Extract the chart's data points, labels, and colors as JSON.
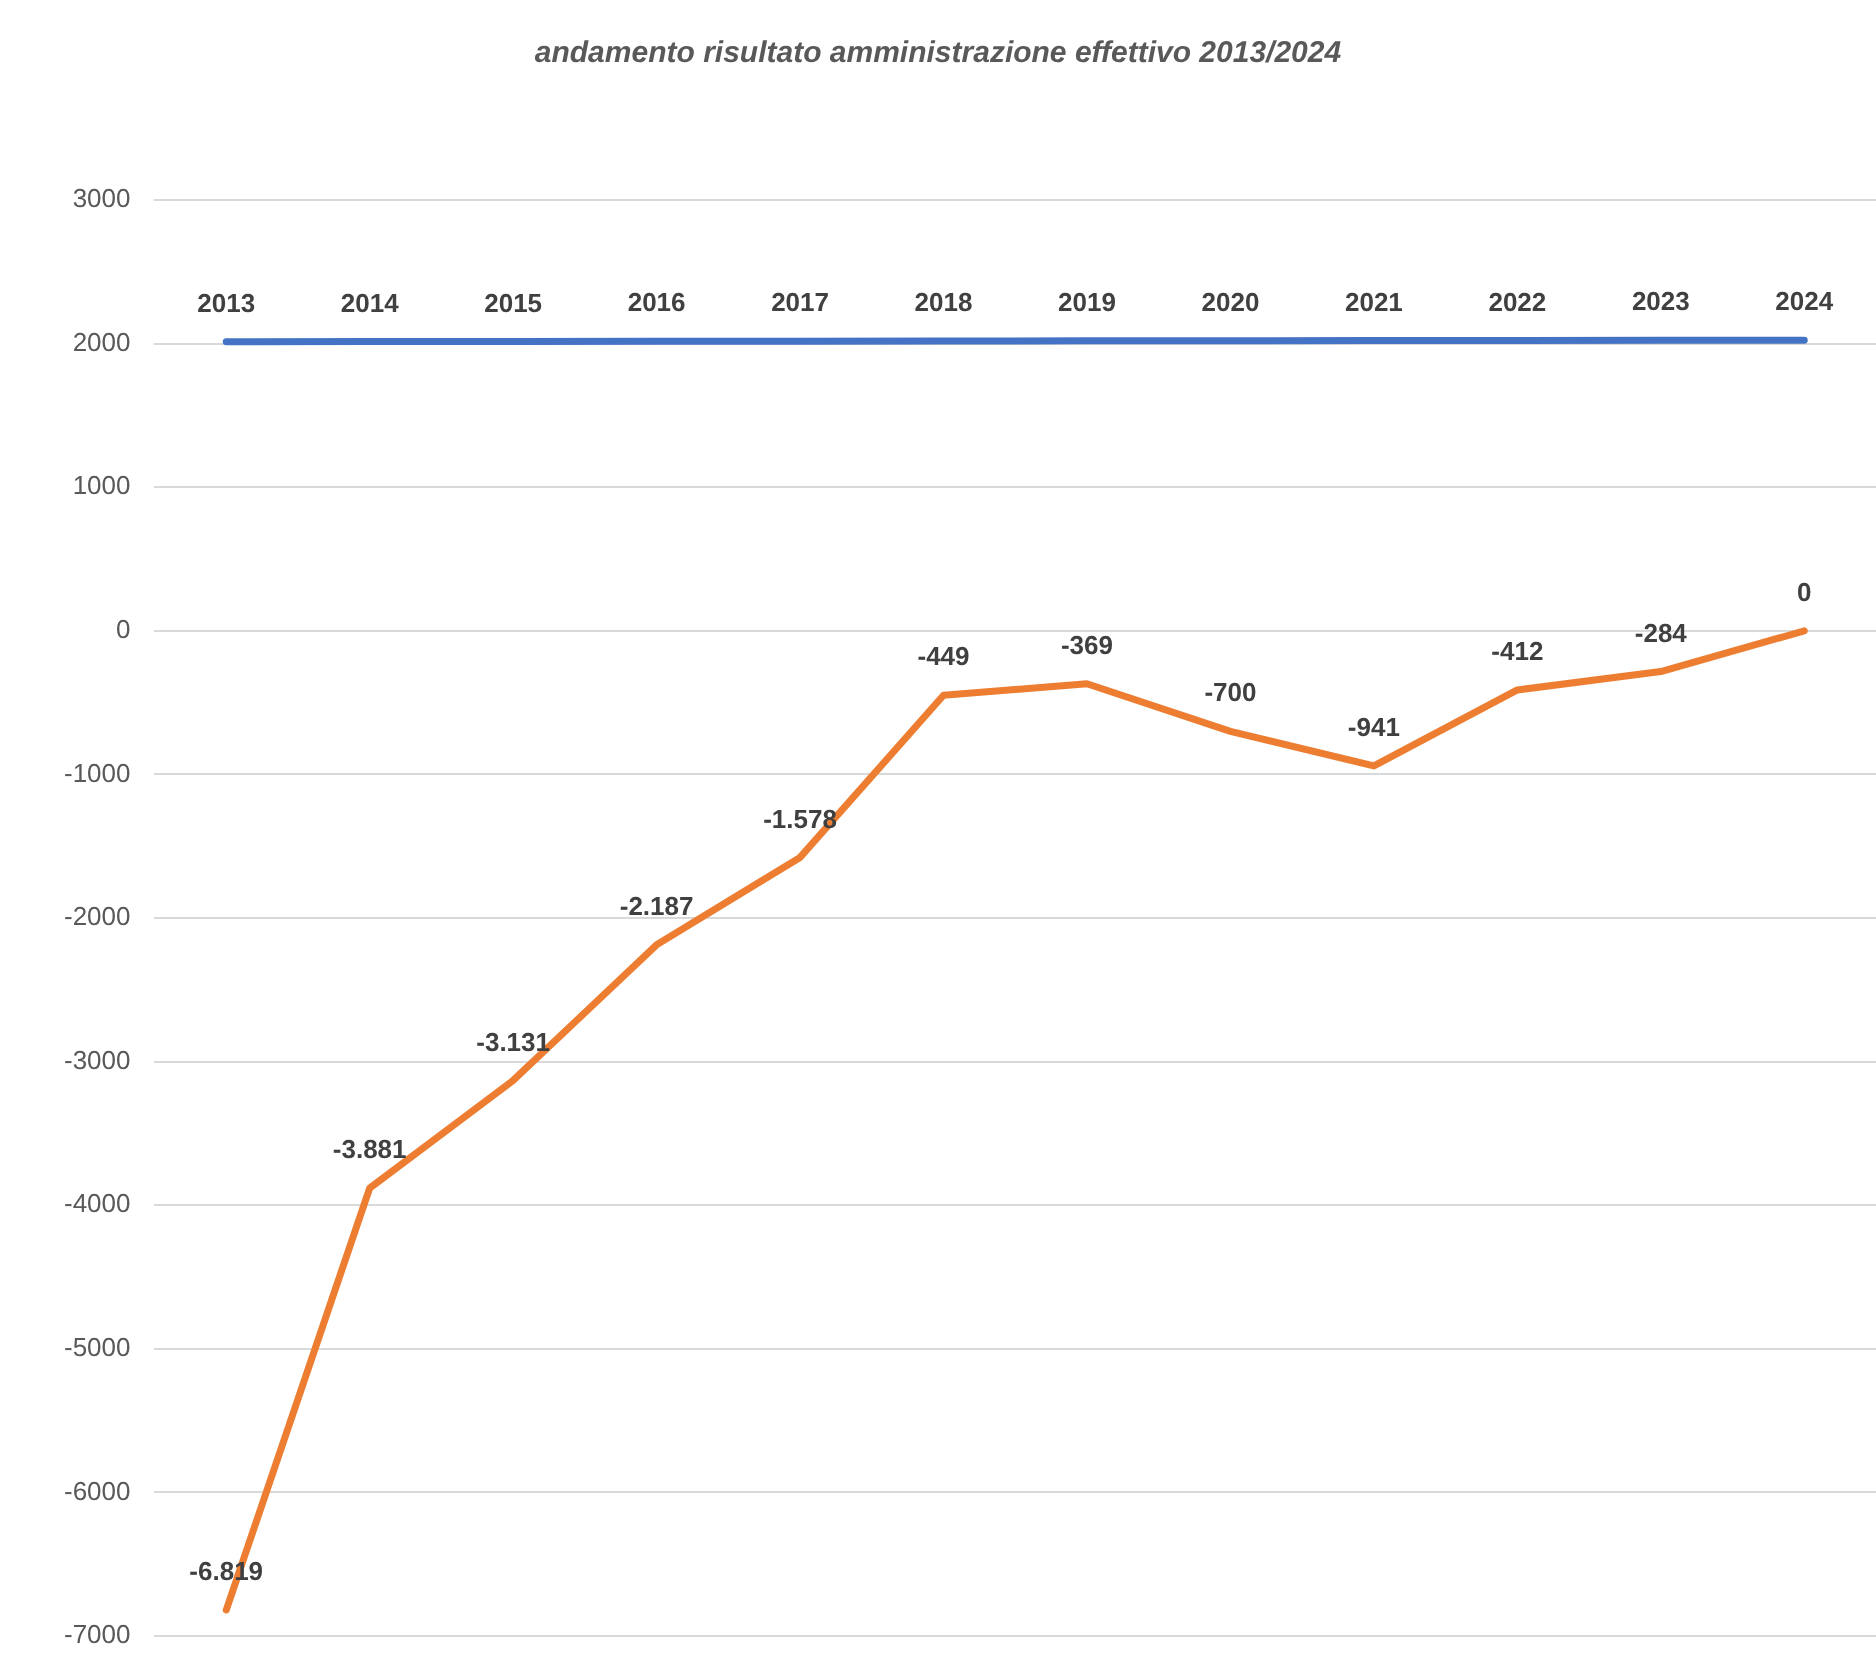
{
  "chart_data": {
    "type": "line",
    "title": "andamento risultato amministrazione effettivo 2013/2024",
    "categories": [
      null,
      null,
      null,
      null,
      null,
      null,
      null,
      null,
      null,
      null,
      null,
      null
    ],
    "series": [
      {
        "color": "#4472c4",
        "values": [
          2013,
          2014,
          2015,
          2016,
          2017,
          2018,
          2019,
          2020,
          2021,
          2022,
          2023,
          2024
        ],
        "value_labels": [
          "2013",
          "2014",
          "2015",
          "2016",
          "2017",
          "2018",
          "2019",
          "2020",
          "2021",
          "2022",
          "2023",
          "2024"
        ]
      },
      {
        "color": "#ed7d31",
        "values": [
          -6819,
          -3881,
          -3131,
          -2187,
          -1578,
          -449,
          -369,
          -700,
          -941,
          -412,
          -284,
          0
        ],
        "value_labels": [
          "-6.819",
          "-3.881",
          "-3.131",
          "-2.187",
          "-1.578",
          "-449",
          "-369",
          "-700",
          "-941",
          "-412",
          "-284",
          "0"
        ]
      }
    ],
    "ylim": [
      -7000,
      3000
    ],
    "yticks": [
      -7000,
      -6000,
      -5000,
      -4000,
      -3000,
      -2000,
      -1000,
      0,
      1000,
      2000,
      3000
    ],
    "grid": "y",
    "legend": false,
    "marker": "none",
    "line_style": "solid",
    "tick_labels": "y"
  }
}
